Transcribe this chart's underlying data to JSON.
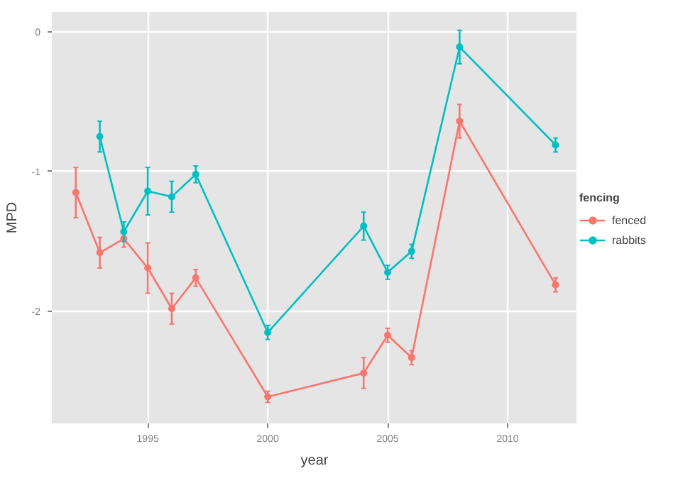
{
  "chart_data": {
    "type": "line",
    "xlabel": "year",
    "ylabel": "MPD",
    "legend_title": "fencing",
    "legend": "right",
    "grid": true,
    "marker": "circle",
    "line_style": "solid",
    "xlim": [
      1991,
      2012.9
    ],
    "xticks": [
      1995,
      2000,
      2005,
      2010
    ],
    "ylim": [
      -2.8,
      0.14
    ],
    "yticks": [
      -2,
      -1,
      0
    ],
    "series": [
      {
        "name": "fenced",
        "color": "#f8766d",
        "x": [
          1992,
          1993,
          1994,
          1995,
          1996,
          1997,
          2000,
          2004,
          2005,
          2006,
          2008,
          2012
        ],
        "values": [
          -1.15,
          -1.58,
          -1.48,
          -1.69,
          -1.98,
          -1.76,
          -2.61,
          -2.44,
          -2.17,
          -2.33,
          -0.64,
          -1.81
        ],
        "errors": [
          0.18,
          0.11,
          0.06,
          0.18,
          0.11,
          0.06,
          0.04,
          0.11,
          0.05,
          0.05,
          0.12,
          0.05
        ]
      },
      {
        "name": "rabbits",
        "color": "#00bfc4",
        "x": [
          1993,
          1994,
          1995,
          1996,
          1997,
          2000,
          2004,
          2005,
          2006,
          2008,
          2012
        ],
        "values": [
          -0.75,
          -1.43,
          -1.14,
          -1.18,
          -1.02,
          -2.15,
          -1.39,
          -1.72,
          -1.57,
          -0.11,
          -0.81
        ],
        "errors": [
          0.11,
          0.07,
          0.17,
          0.11,
          0.06,
          0.05,
          0.1,
          0.05,
          0.05,
          0.12,
          0.05
        ]
      }
    ]
  }
}
